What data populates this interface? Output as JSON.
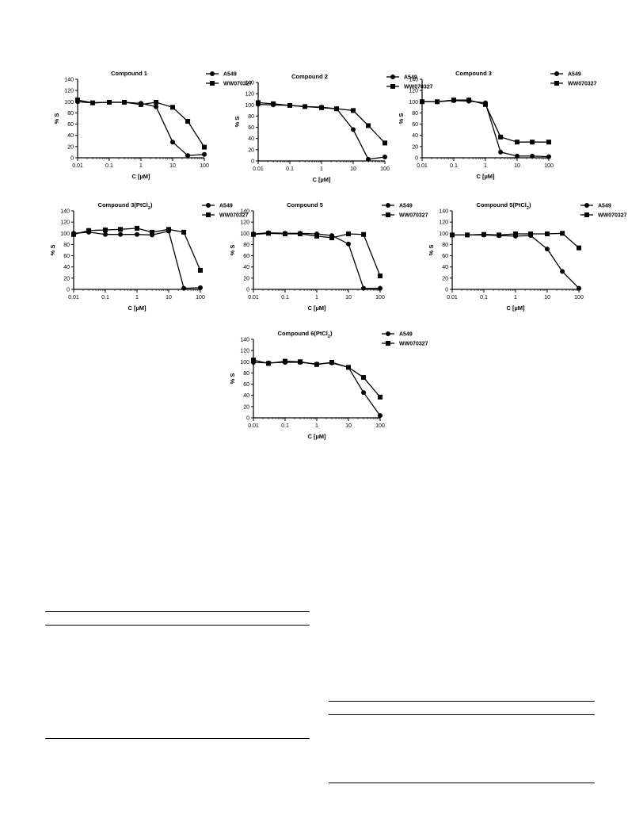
{
  "colors": {
    "ink": "#000000",
    "background": "#ffffff"
  },
  "charts": [
    {
      "type": "line",
      "title": "Compound 1",
      "xlabel": "C [µM]",
      "ylabel": "% S",
      "xscale": "log",
      "xlim": [
        0.01,
        100
      ],
      "ylim": [
        0,
        140
      ],
      "yticks": [
        "0",
        "20",
        "40",
        "60",
        "80",
        "100",
        "120",
        "140"
      ],
      "xticks": [
        "0.01",
        "0.1",
        "1",
        "10",
        "100"
      ],
      "legend_position": "top-right",
      "series": [
        {
          "name": "A549",
          "marker": "circle",
          "x": [
            0.01,
            0.03,
            0.1,
            0.3,
            1,
            3,
            10,
            30,
            100
          ],
          "y": [
            100,
            98,
            99,
            99,
            97,
            91,
            28,
            4,
            6
          ]
        },
        {
          "name": "WW070327",
          "marker": "square",
          "x": [
            0.01,
            0.03,
            0.1,
            0.3,
            1,
            3,
            10,
            30,
            100
          ],
          "y": [
            103,
            98,
            99,
            99,
            95,
            99,
            90,
            65,
            19
          ]
        }
      ]
    },
    {
      "type": "line",
      "title": "Compound 2",
      "xlabel": "C [µM]",
      "ylabel": "% S",
      "xscale": "log",
      "xlim": [
        0.01,
        100
      ],
      "ylim": [
        0,
        140
      ],
      "yticks": [
        "0",
        "20",
        "40",
        "60",
        "80",
        "100",
        "120",
        "140"
      ],
      "xticks": [
        "0.01",
        "0.1",
        "1",
        "10",
        "100"
      ],
      "legend_position": "top-right",
      "series": [
        {
          "name": "A549",
          "marker": "circle",
          "x": [
            0.01,
            0.03,
            0.1,
            0.3,
            1,
            3,
            10,
            30,
            100
          ],
          "y": [
            101,
            100,
            99,
            97,
            96,
            93,
            56,
            3,
            7
          ]
        },
        {
          "name": "WW070327",
          "marker": "square",
          "x": [
            0.01,
            0.03,
            0.1,
            0.3,
            1,
            3,
            10,
            30,
            100
          ],
          "y": [
            104,
            102,
            99,
            97,
            95,
            93,
            90,
            63,
            32
          ]
        }
      ]
    },
    {
      "type": "line",
      "title": "Compound 3",
      "xlabel": "C [µM]",
      "ylabel": "% S",
      "xscale": "log",
      "xlim": [
        0.01,
        100
      ],
      "ylim": [
        0,
        140
      ],
      "yticks": [
        "0",
        "20",
        "40",
        "60",
        "80",
        "100",
        "120",
        "140"
      ],
      "xticks": [
        "0.01",
        "0.1",
        "1",
        "10",
        "100"
      ],
      "legend_position": "top-right",
      "series": [
        {
          "name": "A549",
          "marker": "circle",
          "x": [
            0.01,
            0.03,
            0.1,
            0.3,
            1,
            3,
            10,
            30,
            100
          ],
          "y": [
            100,
            100,
            102,
            101,
            98,
            10,
            3,
            3,
            2
          ]
        },
        {
          "name": "WW070327",
          "marker": "square",
          "x": [
            0.01,
            0.03,
            0.1,
            0.3,
            1,
            3,
            10,
            30,
            100
          ],
          "y": [
            100,
            100,
            103,
            103,
            95,
            37,
            28,
            28,
            28
          ]
        }
      ]
    },
    {
      "type": "line",
      "title": "Compound 3(PtCl",
      "title_sub": "2",
      "title_end": ")",
      "xlabel": "C [µM]",
      "ylabel": "% S",
      "xscale": "log",
      "xlim": [
        0.01,
        100
      ],
      "ylim": [
        0,
        140
      ],
      "yticks": [
        "0",
        "20",
        "40",
        "60",
        "80",
        "100",
        "120",
        "140"
      ],
      "xticks": [
        "0.01",
        "0.1",
        "1",
        "10",
        "100"
      ],
      "legend_position": "top-right",
      "series": [
        {
          "name": "A549",
          "marker": "circle",
          "x": [
            0.01,
            0.03,
            0.1,
            0.3,
            1,
            3,
            10,
            30,
            100
          ],
          "y": [
            100,
            102,
            98,
            98,
            98,
            97,
            104,
            2,
            3
          ]
        },
        {
          "name": "WW070327",
          "marker": "square",
          "x": [
            0.01,
            0.03,
            0.1,
            0.3,
            1,
            3,
            10,
            30,
            100
          ],
          "y": [
            98,
            105,
            106,
            107,
            109,
            102,
            107,
            102,
            34
          ]
        }
      ]
    },
    {
      "type": "line",
      "title": "Compound 5",
      "xlabel": "C [µM]",
      "ylabel": "% S",
      "xscale": "log",
      "xlim": [
        0.01,
        100
      ],
      "ylim": [
        0,
        140
      ],
      "yticks": [
        "0",
        "20",
        "40",
        "60",
        "80",
        "100",
        "120",
        "140"
      ],
      "xticks": [
        "0.01",
        "0.1",
        "1",
        "10",
        "100"
      ],
      "legend_position": "top-right",
      "series": [
        {
          "name": "A549",
          "marker": "circle",
          "x": [
            0.01,
            0.03,
            0.1,
            0.3,
            1,
            3,
            10,
            30,
            100
          ],
          "y": [
            99,
            101,
            100,
            100,
            99,
            96,
            81,
            2,
            2
          ]
        },
        {
          "name": "WW070327",
          "marker": "square",
          "x": [
            0.01,
            0.03,
            0.1,
            0.3,
            1,
            3,
            10,
            30,
            100
          ],
          "y": [
            98,
            100,
            99,
            99,
            95,
            92,
            99,
            98,
            24
          ]
        }
      ]
    },
    {
      "type": "line",
      "title": "Compound 5(PtCl",
      "title_sub": "2",
      "title_end": ")",
      "xlabel": "C [µM]",
      "ylabel": "% S",
      "xscale": "log",
      "xlim": [
        0.01,
        100
      ],
      "ylim": [
        0,
        140
      ],
      "yticks": [
        "0",
        "20",
        "40",
        "60",
        "80",
        "100",
        "120",
        "140"
      ],
      "xticks": [
        "0.01",
        "0.1",
        "1",
        "10",
        "100"
      ],
      "legend_position": "top-right",
      "series": [
        {
          "name": "A549",
          "marker": "circle",
          "x": [
            0.01,
            0.03,
            0.1,
            0.3,
            1,
            3,
            10,
            30,
            100
          ],
          "y": [
            97,
            97,
            97,
            96,
            95,
            96,
            72,
            32,
            2
          ]
        },
        {
          "name": "WW070327",
          "marker": "square",
          "x": [
            0.01,
            0.03,
            0.1,
            0.3,
            1,
            3,
            10,
            30,
            100
          ],
          "y": [
            97,
            97,
            98,
            97,
            99,
            99,
            99,
            100,
            74
          ]
        }
      ]
    },
    {
      "type": "line",
      "title": "Compound 6(PtCl",
      "title_sub": "2",
      "title_end": ")",
      "xlabel": "C [µM]",
      "ylabel": "% S",
      "xscale": "log",
      "xlim": [
        0.01,
        100
      ],
      "ylim": [
        0,
        140
      ],
      "yticks": [
        "0",
        "20",
        "40",
        "60",
        "80",
        "100",
        "120",
        "140"
      ],
      "xticks": [
        "0.01",
        "0.1",
        "1",
        "10",
        "100"
      ],
      "legend_position": "top-right",
      "series": [
        {
          "name": "A549",
          "marker": "circle",
          "x": [
            0.01,
            0.03,
            0.1,
            0.3,
            1,
            3,
            10,
            30,
            100
          ],
          "y": [
            99,
            98,
            99,
            99,
            96,
            98,
            90,
            45,
            4
          ]
        },
        {
          "name": "WW070327",
          "marker": "square",
          "x": [
            0.01,
            0.03,
            0.1,
            0.3,
            1,
            3,
            10,
            30,
            100
          ],
          "y": [
            103,
            97,
            101,
            100,
            95,
            99,
            90,
            72,
            37
          ]
        }
      ]
    }
  ]
}
